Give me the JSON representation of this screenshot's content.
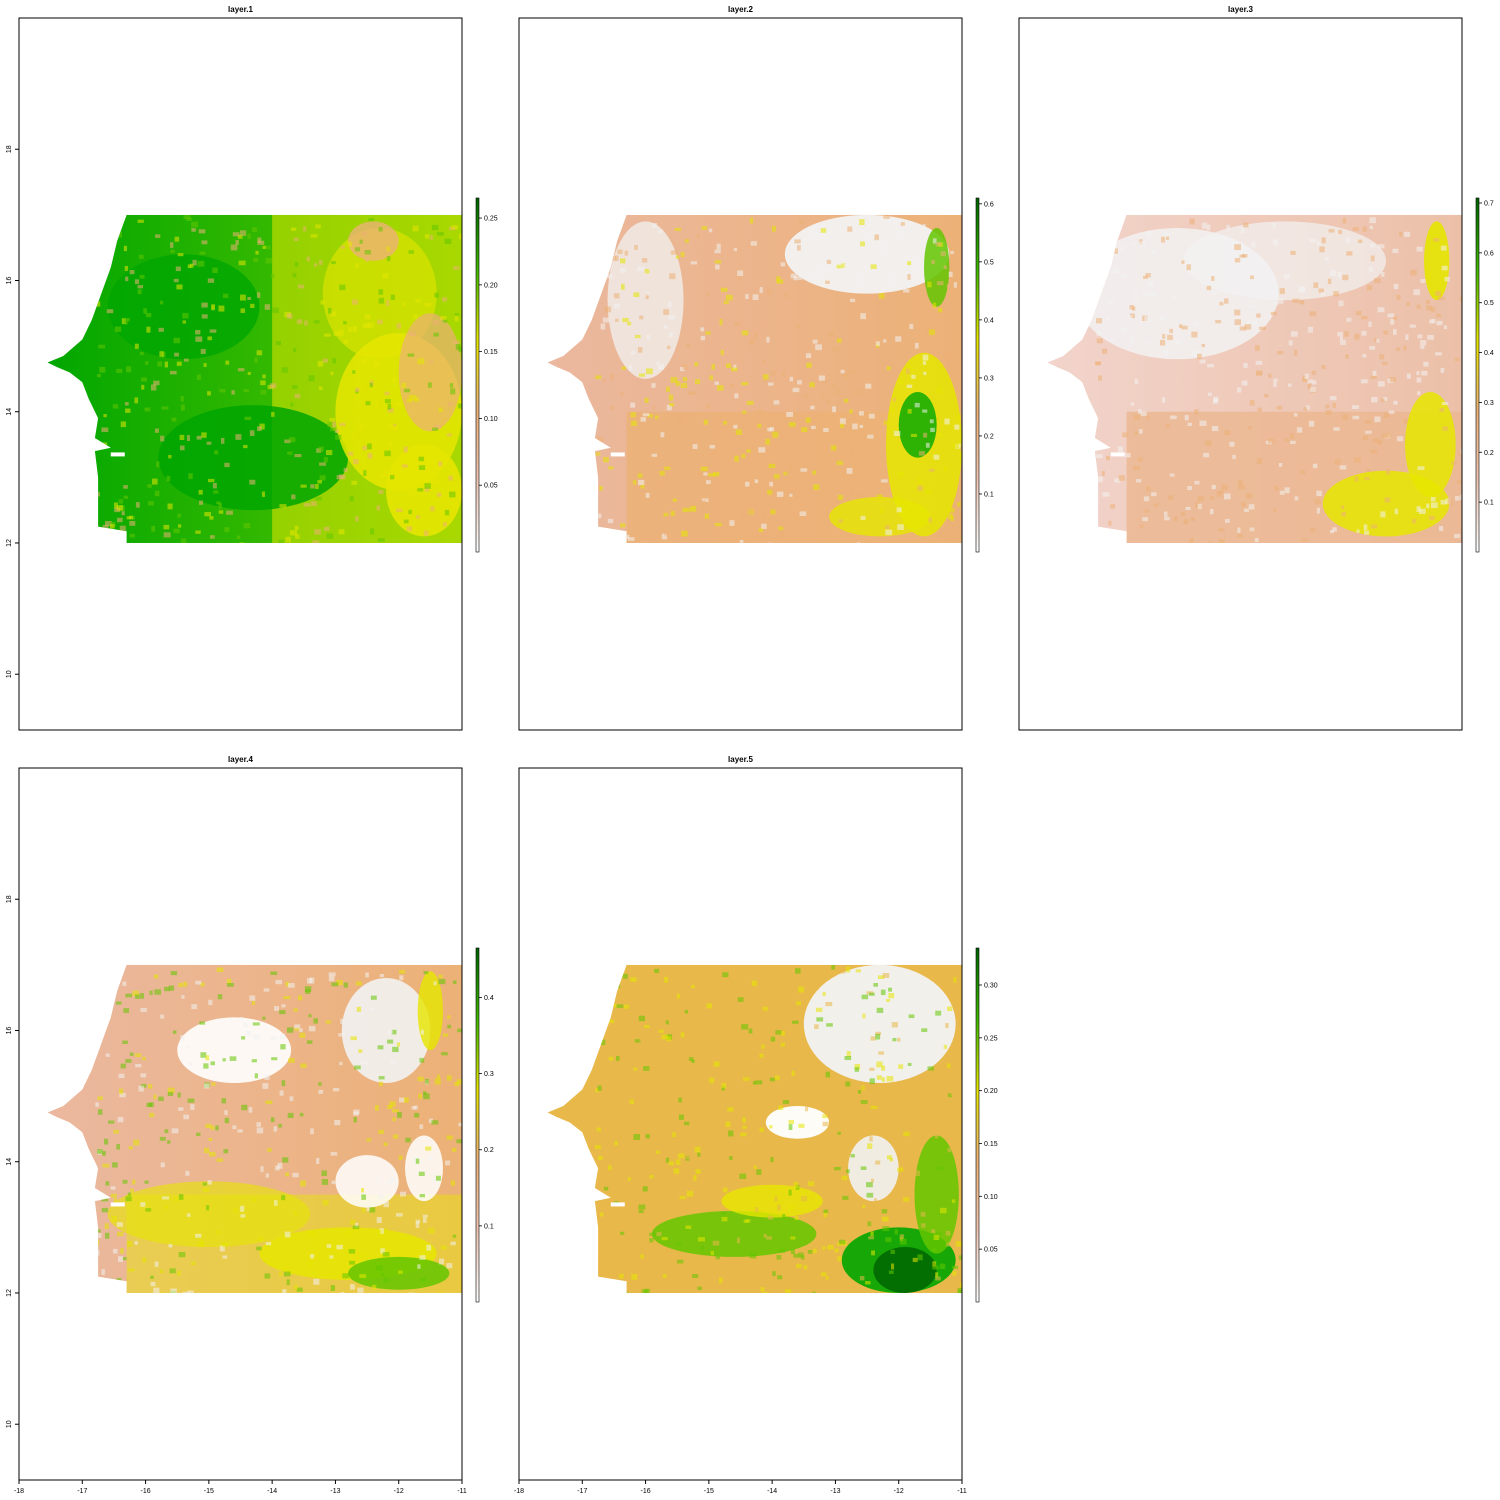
{
  "figure": {
    "x_ticks": [
      "-18",
      "-17",
      "-16",
      "-15",
      "-14",
      "-13",
      "-12",
      "-11"
    ],
    "y_ticks": [
      "10",
      "12",
      "14",
      "16",
      "18"
    ],
    "panels": [
      {
        "title": "layer.1",
        "scheme": "green",
        "legend_ticks": [
          "0.05",
          "0.10",
          "0.15",
          "0.20",
          "0.25"
        ],
        "legend_max": 0.265
      },
      {
        "title": "layer.2",
        "scheme": "beige",
        "legend_ticks": [
          "0.1",
          "0.2",
          "0.3",
          "0.4",
          "0.5",
          "0.6"
        ],
        "legend_max": 0.61
      },
      {
        "title": "layer.3",
        "scheme": "white",
        "legend_ticks": [
          "0.1",
          "0.2",
          "0.3",
          "0.4",
          "0.5",
          "0.6",
          "0.7"
        ],
        "legend_max": 0.71
      },
      {
        "title": "layer.4",
        "scheme": "mixed",
        "legend_ticks": [
          "0.1",
          "0.2",
          "0.3",
          "0.4"
        ],
        "legend_max": 0.465
      },
      {
        "title": "layer.5",
        "scheme": "orange",
        "legend_ticks": [
          "0.05",
          "0.10",
          "0.15",
          "0.20",
          "0.25",
          "0.30"
        ],
        "legend_max": 0.335
      }
    ]
  },
  "colors": {
    "ramp": [
      "#f2f2f2",
      "#ecb176",
      "#e6e600",
      "#63c600",
      "#00a600",
      "#006400"
    ],
    "frame": "#000000",
    "white_patch": "#ffffff"
  }
}
